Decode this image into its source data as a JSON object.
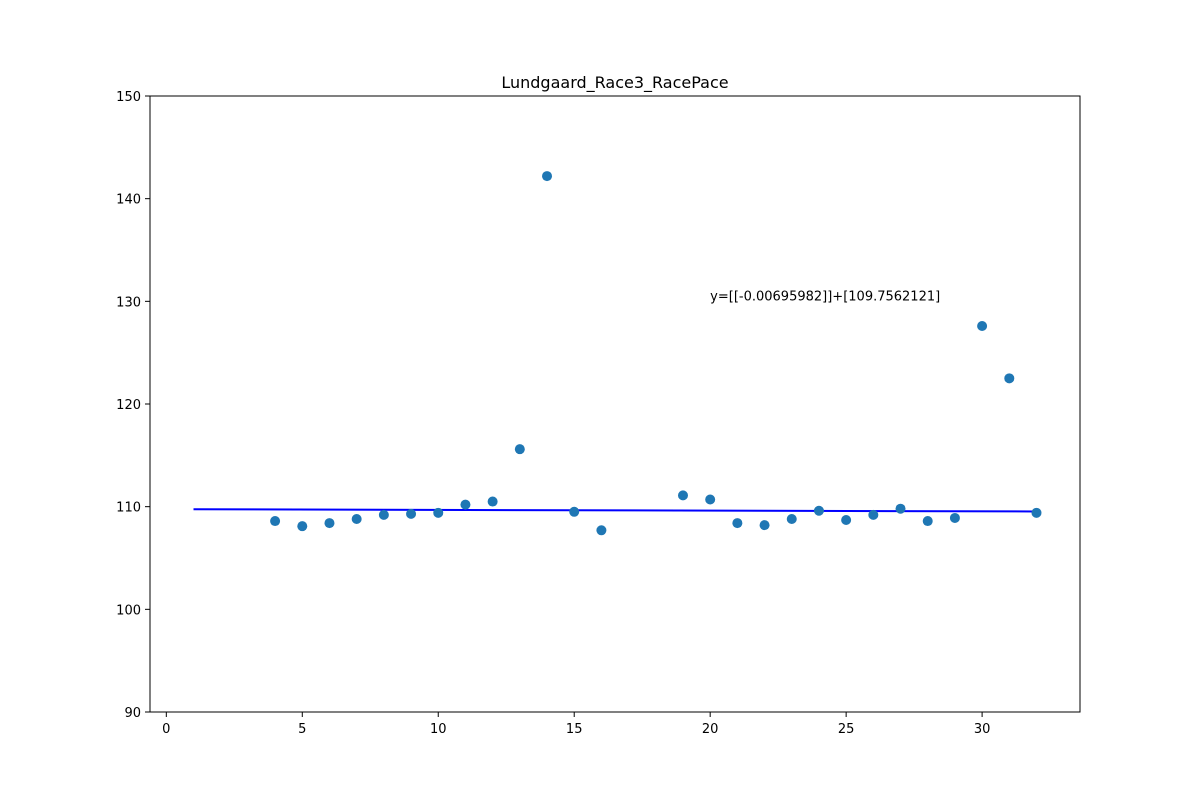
{
  "chart_data": {
    "type": "scatter",
    "title": "Lundgaard_Race3_RacePace",
    "xlabel": "",
    "ylabel": "",
    "xlim": [
      -0.6,
      33.6
    ],
    "ylim": [
      90,
      150
    ],
    "xticks": [
      0,
      5,
      10,
      15,
      20,
      25,
      30
    ],
    "yticks": [
      90,
      100,
      110,
      120,
      130,
      140,
      150
    ],
    "grid": false,
    "points": {
      "x": [
        4,
        5,
        6,
        7,
        8,
        9,
        10,
        11,
        12,
        13,
        14,
        15,
        16,
        19,
        20,
        21,
        22,
        23,
        24,
        25,
        26,
        27,
        28,
        29,
        30,
        31,
        32
      ],
      "y": [
        108.6,
        108.1,
        108.4,
        108.8,
        109.2,
        109.3,
        109.4,
        110.2,
        110.5,
        115.6,
        142.2,
        109.5,
        107.7,
        111.1,
        110.7,
        108.4,
        108.2,
        108.8,
        109.6,
        108.7,
        109.2,
        109.8,
        108.6,
        108.9,
        127.6,
        122.5,
        109.4
      ],
      "color": "#1f77b4"
    },
    "fit_line": {
      "x": [
        1,
        32
      ],
      "y": [
        109.749,
        109.534
      ],
      "color": "#0000ff"
    },
    "annotation": {
      "text": "y=[[-0.00695982]]+[109.7562121]",
      "x": 20,
      "y": 130
    }
  }
}
